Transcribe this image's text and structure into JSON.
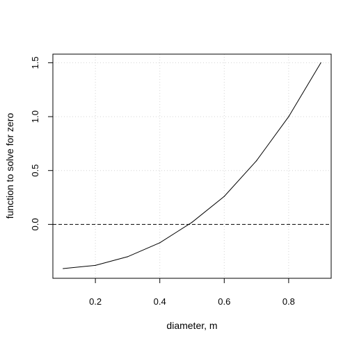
{
  "chart_data": {
    "type": "line",
    "title": "",
    "xlabel": "diameter, m",
    "ylabel": "function to solve for zero",
    "xlim": [
      0.068,
      0.932
    ],
    "ylim": [
      -0.5,
      1.58
    ],
    "xticks": [
      0.2,
      0.4,
      0.6,
      0.8
    ],
    "yticks": [
      0.0,
      0.5,
      1.0,
      1.5
    ],
    "xtick_labels": [
      "0.2",
      "0.4",
      "0.6",
      "0.8"
    ],
    "ytick_labels": [
      "0.0",
      "0.5",
      "1.0",
      "1.5"
    ],
    "grid": true,
    "reference_line": {
      "y": 0,
      "style": "dashed"
    },
    "series": [
      {
        "x": [
          0.1,
          0.2,
          0.3,
          0.4,
          0.5,
          0.6,
          0.7,
          0.8,
          0.9
        ],
        "y": [
          -0.41,
          -0.38,
          -0.3,
          -0.17,
          0.02,
          0.26,
          0.59,
          1.0,
          1.5
        ]
      }
    ]
  }
}
